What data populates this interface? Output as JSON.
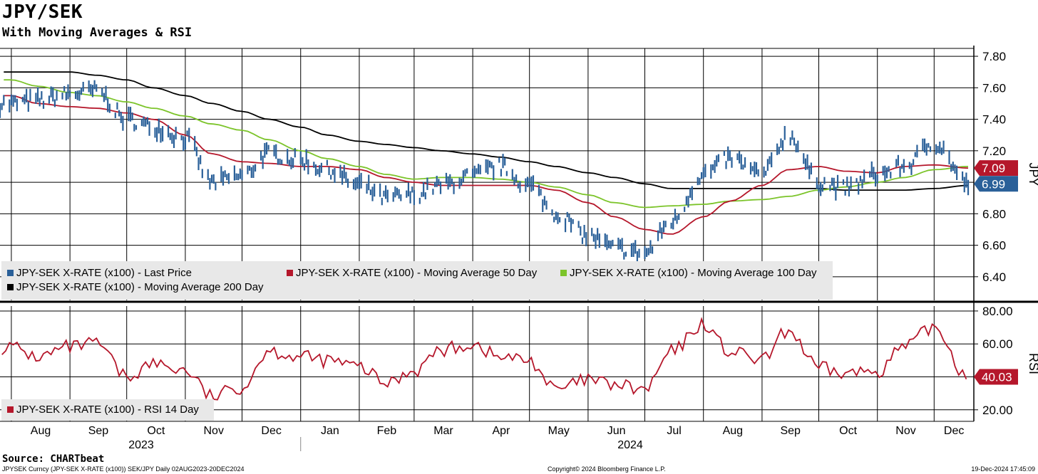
{
  "title": "JPY/SEK",
  "subtitle": "With Moving Averages & RSI",
  "footer": {
    "source": "Source: CHARTbeat",
    "description": "JPYSEK Curncy (JPY-SEK X-RATE (x100)) SEK/JPY  Daily 02AUG2023-20DEC2024",
    "copyright": "Copyright© 2024 Bloomberg Finance L.P.",
    "timestamp": "19-Dec-2024 17:45:09"
  },
  "colors": {
    "price": "#2a6099",
    "ma50": "#b5172b",
    "ma100": "#7cc42a",
    "ma200": "#000000",
    "rsi": "#b5172b"
  },
  "legend_price": [
    {
      "label": "JPY-SEK X-RATE (x100) - Last Price",
      "color": "#2a6099"
    },
    {
      "label": "JPY-SEK X-RATE (x100) - Moving Average 50 Day",
      "color": "#b5172b"
    },
    {
      "label": "JPY-SEK X-RATE (x100) - Moving Average 100 Day",
      "color": "#7cc42a"
    },
    {
      "label": "JPY-SEK X-RATE (x100) - Moving Average 200 Day",
      "color": "#000000"
    }
  ],
  "legend_rsi": [
    {
      "label": "JPY-SEK X-RATE (x100) - RSI 14 Day",
      "color": "#b5172b"
    }
  ],
  "chart_data": [
    {
      "type": "line",
      "panel": "price",
      "ylabel": "JPY",
      "ylim": [
        6.25,
        7.85
      ],
      "yticks": [
        "7.80",
        "7.60",
        "7.40",
        "7.20",
        "6.80",
        "6.60",
        "6.40"
      ],
      "yticks_values": [
        7.8,
        7.6,
        7.4,
        7.2,
        6.8,
        6.6,
        6.4
      ],
      "ygrid": [
        7.8,
        7.6,
        7.4,
        7.2,
        7.0,
        6.8,
        6.6,
        6.4
      ],
      "last_labels": [
        {
          "text": "7.09",
          "value": 7.09,
          "color": "#b5172b"
        },
        {
          "text": "6.99",
          "value": 6.99,
          "color": "#2a6099"
        }
      ],
      "x_points": [
        "2023-08-01",
        "2023-08-15",
        "2023-09-01",
        "2023-09-15",
        "2023-10-01",
        "2023-10-15",
        "2023-11-01",
        "2023-11-15",
        "2023-12-01",
        "2023-12-15",
        "2024-01-01",
        "2024-01-15",
        "2024-02-01",
        "2024-02-15",
        "2024-03-01",
        "2024-03-15",
        "2024-04-01",
        "2024-04-15",
        "2024-05-01",
        "2024-05-15",
        "2024-06-01",
        "2024-06-15",
        "2024-07-01",
        "2024-07-15",
        "2024-08-01",
        "2024-08-15",
        "2024-09-01",
        "2024-09-15",
        "2024-10-01",
        "2024-10-15",
        "2024-11-01",
        "2024-11-15",
        "2024-12-01",
        "2024-12-19"
      ],
      "series": [
        {
          "name": "JPY-SEK X-RATE (x100) - Last Price",
          "values": [
            7.5,
            7.52,
            7.56,
            7.58,
            7.4,
            7.35,
            7.28,
            7.0,
            7.04,
            7.18,
            7.14,
            7.08,
            6.98,
            6.9,
            6.92,
            6.98,
            7.04,
            7.1,
            6.98,
            6.8,
            6.66,
            6.58,
            6.55,
            6.75,
            7.05,
            7.15,
            7.05,
            7.3,
            7.0,
            6.96,
            7.05,
            7.1,
            7.25,
            6.99
          ]
        },
        {
          "name": "JPY-SEK X-RATE (x100) - Moving Average 50 Day",
          "values": [
            7.55,
            7.5,
            7.48,
            7.47,
            7.44,
            7.4,
            7.3,
            7.18,
            7.13,
            7.12,
            7.1,
            7.1,
            7.08,
            7.03,
            7.0,
            6.98,
            6.98,
            6.98,
            6.98,
            6.95,
            6.87,
            6.78,
            6.7,
            6.67,
            6.78,
            6.88,
            6.98,
            7.08,
            7.1,
            7.07,
            7.06,
            7.1,
            7.11,
            7.09
          ]
        },
        {
          "name": "JPY-SEK X-RATE (x100) - Moving Average 100 Day",
          "values": [
            7.65,
            7.61,
            7.57,
            7.55,
            7.51,
            7.47,
            7.42,
            7.37,
            7.33,
            7.27,
            7.2,
            7.15,
            7.1,
            7.05,
            7.02,
            7.03,
            7.03,
            7.02,
            7.0,
            6.97,
            6.92,
            6.87,
            6.84,
            6.85,
            6.86,
            6.88,
            6.89,
            6.91,
            6.95,
            6.97,
            7.0,
            7.03,
            7.08,
            7.1
          ]
        },
        {
          "name": "JPY-SEK X-RATE (x100) - Moving Average 200 Day",
          "values": [
            7.7,
            7.7,
            7.7,
            7.68,
            7.65,
            7.6,
            7.55,
            7.5,
            7.45,
            7.4,
            7.35,
            7.3,
            7.26,
            7.24,
            7.22,
            7.2,
            7.18,
            7.16,
            7.13,
            7.1,
            7.06,
            7.03,
            6.99,
            6.96,
            6.96,
            6.96,
            6.96,
            6.96,
            6.96,
            6.95,
            6.95,
            6.95,
            6.96,
            6.98
          ]
        }
      ]
    },
    {
      "type": "line",
      "panel": "rsi",
      "ylabel": "RSI",
      "ylim": [
        13,
        83
      ],
      "yticks": [
        "80.00",
        "60.00",
        "20.00"
      ],
      "yticks_values": [
        80,
        60,
        20
      ],
      "ygrid": [
        80,
        60,
        40,
        20
      ],
      "last_labels": [
        {
          "text": "40.03",
          "value": 40.03,
          "color": "#b5172b"
        }
      ],
      "x_points": [
        "2023-08-01",
        "2023-08-15",
        "2023-09-01",
        "2023-09-15",
        "2023-10-01",
        "2023-10-15",
        "2023-11-01",
        "2023-11-15",
        "2023-12-01",
        "2023-12-15",
        "2024-01-01",
        "2024-01-15",
        "2024-02-01",
        "2024-02-15",
        "2024-03-01",
        "2024-03-15",
        "2024-04-01",
        "2024-04-15",
        "2024-05-01",
        "2024-05-15",
        "2024-06-01",
        "2024-06-15",
        "2024-07-01",
        "2024-07-15",
        "2024-08-01",
        "2024-08-15",
        "2024-09-01",
        "2024-09-15",
        "2024-10-01",
        "2024-10-15",
        "2024-11-01",
        "2024-11-15",
        "2024-12-01",
        "2024-12-19"
      ],
      "series": [
        {
          "name": "JPY-SEK X-RATE (x100) - RSI 14 Day",
          "values": [
            58,
            52,
            58,
            60,
            40,
            48,
            44,
            28,
            34,
            56,
            52,
            50,
            46,
            36,
            44,
            56,
            60,
            52,
            50,
            32,
            38,
            35,
            32,
            55,
            72,
            55,
            50,
            68,
            45,
            42,
            44,
            58,
            70,
            40
          ]
        }
      ]
    }
  ],
  "x_axis": {
    "months": [
      "Aug",
      "Sep",
      "Oct",
      "Nov",
      "Dec",
      "Jan",
      "Feb",
      "Mar",
      "Apr",
      "May",
      "Jun",
      "Jul",
      "Aug",
      "Sep",
      "Oct",
      "Nov",
      "Dec"
    ],
    "years": [
      "2023",
      "2024"
    ]
  }
}
